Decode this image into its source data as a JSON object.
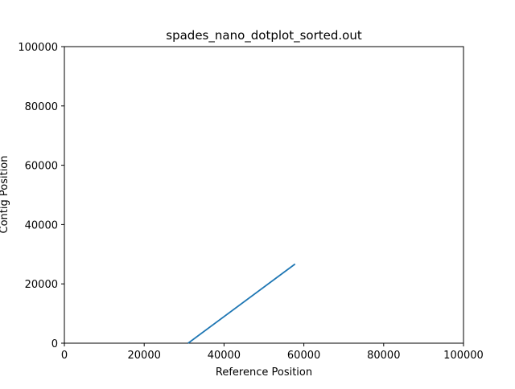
{
  "chart_data": {
    "type": "line",
    "title": "spades_nano_dotplot_sorted.out",
    "xlabel": "Reference Position",
    "ylabel": "Contig Position",
    "xlim": [
      0,
      100000
    ],
    "ylim": [
      0,
      100000
    ],
    "xticks": [
      "0",
      "20000",
      "40000",
      "60000",
      "80000",
      "100000"
    ],
    "yticks": [
      "0",
      "20000",
      "40000",
      "60000",
      "80000",
      "100000"
    ],
    "grid": false,
    "legend": "none",
    "series": [
      {
        "color": "#1f77b4",
        "points": [
          {
            "x": 31000,
            "y": 0
          },
          {
            "x": 57800,
            "y": 26700
          }
        ]
      }
    ]
  }
}
